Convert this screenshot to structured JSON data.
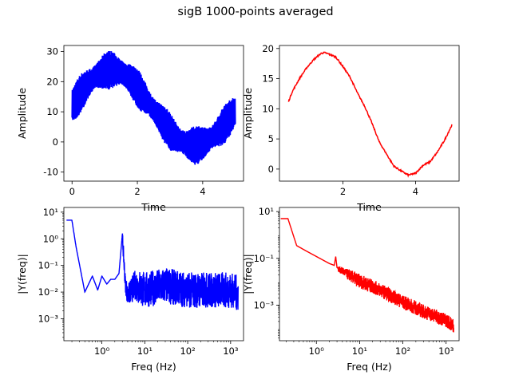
{
  "figure": {
    "title": "sigB 1000-points averaged"
  },
  "chart_data": [
    {
      "id": "time-raw",
      "type": "line",
      "color": "#0000ff",
      "xlabel": "Time",
      "ylabel": "Amplitude",
      "xlim": [
        -0.25,
        5.25
      ],
      "ylim": [
        -13,
        32
      ],
      "xticks": [
        0,
        2,
        4
      ],
      "yticks": [
        -10,
        0,
        10,
        20,
        30
      ],
      "series": [
        {
          "x": [
            0,
            0.25,
            0.5,
            0.75,
            1.0,
            1.25,
            1.5,
            1.75,
            2.0,
            2.25,
            2.5,
            2.75,
            3.0,
            3.25,
            3.5,
            3.75,
            4.0,
            4.25,
            4.5,
            4.75,
            5.0
          ],
          "y": [
            12,
            15.9,
            19.4,
            22.0,
            23.6,
            24.0,
            23.2,
            21.1,
            18.0,
            14.4,
            10.6,
            6.9,
            3.5,
            0.9,
            -0.7,
            -1.2,
            -0.6,
            1.2,
            3.8,
            6.9,
            10.3
          ]
        }
      ],
      "band_halfwidth": 6.5
    },
    {
      "id": "time-averaged",
      "type": "line",
      "color": "#ff0000",
      "xlabel": "Time",
      "ylabel": "Amplitude",
      "xlim": [
        0.25,
        5.2
      ],
      "ylim": [
        -2,
        20.5
      ],
      "xticks": [
        2,
        4
      ],
      "yticks": [
        0,
        5,
        10,
        15,
        20
      ],
      "series": [
        {
          "x": [
            0.5,
            0.6,
            0.8,
            1.0,
            1.2,
            1.4,
            1.5,
            1.6,
            1.8,
            2.0,
            2.2,
            2.4,
            2.6,
            2.8,
            3.0,
            3.2,
            3.4,
            3.6,
            3.8,
            4.0,
            4.2,
            4.4,
            4.6,
            4.8,
            5.0
          ],
          "y": [
            11.2,
            12.8,
            15.0,
            16.8,
            18.2,
            19.2,
            19.3,
            19.1,
            18.6,
            17.0,
            15.2,
            12.6,
            10.4,
            7.6,
            4.5,
            2.5,
            0.5,
            -0.3,
            -1.0,
            -0.7,
            0.6,
            1.2,
            2.8,
            4.8,
            7.3
          ]
        }
      ]
    },
    {
      "id": "fft-raw",
      "type": "line",
      "color": "#0000ff",
      "xlabel": "Freq (Hz)",
      "ylabel": "|Y(freq)|",
      "xscale": "log",
      "yscale": "log",
      "xlim": [
        0.13,
        2000
      ],
      "ylim": [
        0.00015,
        15
      ],
      "xticks": [
        1,
        10,
        100,
        1000
      ],
      "xticklabels": [
        "10⁰",
        "10¹",
        "10²",
        "10³"
      ],
      "yticks": [
        0.001,
        0.01,
        0.1,
        1,
        10
      ],
      "yticklabels": [
        "10⁻³",
        "10⁻²",
        "10⁻¹",
        "10⁰",
        "10¹"
      ],
      "series": [
        {
          "x": [
            0.15,
            0.2,
            0.25,
            0.4,
            0.6,
            0.8,
            1.0,
            1.3,
            1.6,
            2.0,
            2.5,
            3.0,
            3.5,
            4,
            6,
            10,
            30,
            100,
            300,
            1000,
            1500
          ],
          "y": [
            5,
            5,
            0.5,
            0.01,
            0.04,
            0.012,
            0.04,
            0.02,
            0.03,
            0.03,
            0.05,
            1.5,
            0.03,
            0.01,
            0.03,
            0.02,
            0.03,
            0.02,
            0.02,
            0.02,
            0.015
          ]
        }
      ],
      "noise_floor_from_hz": 3,
      "noise_spread_decades": [
        -0.9,
        0.45
      ]
    },
    {
      "id": "fft-averaged",
      "type": "line",
      "color": "#ff0000",
      "xlabel": "Freq (Hz)",
      "ylabel": "|Y(freq)|",
      "xscale": "log",
      "yscale": "log",
      "xlim": [
        0.14,
        2000
      ],
      "ylim": [
        3e-05,
        15
      ],
      "xticks": [
        1,
        10,
        100,
        1000
      ],
      "xticklabels": [
        "10⁰",
        "10¹",
        "10²",
        "10³"
      ],
      "yticks": [
        0.001,
        0.1,
        10
      ],
      "yticklabels": [
        "10⁻³",
        "10⁻¹",
        "10¹"
      ],
      "series": [
        {
          "x": [
            0.15,
            0.22,
            0.35,
            0.6,
            1.0,
            1.5,
            2.0,
            2.6,
            2.8,
            3.0,
            4.0,
            10,
            30,
            100,
            300,
            1000,
            1500
          ],
          "y": [
            5,
            5,
            0.35,
            0.2,
            0.12,
            0.08,
            0.06,
            0.05,
            0.12,
            0.04,
            0.03,
            0.012,
            0.005,
            0.0015,
            0.0006,
            0.00025,
            0.00015
          ]
        }
      ],
      "noise_spread_decades": [
        -0.35,
        0.25
      ]
    }
  ]
}
